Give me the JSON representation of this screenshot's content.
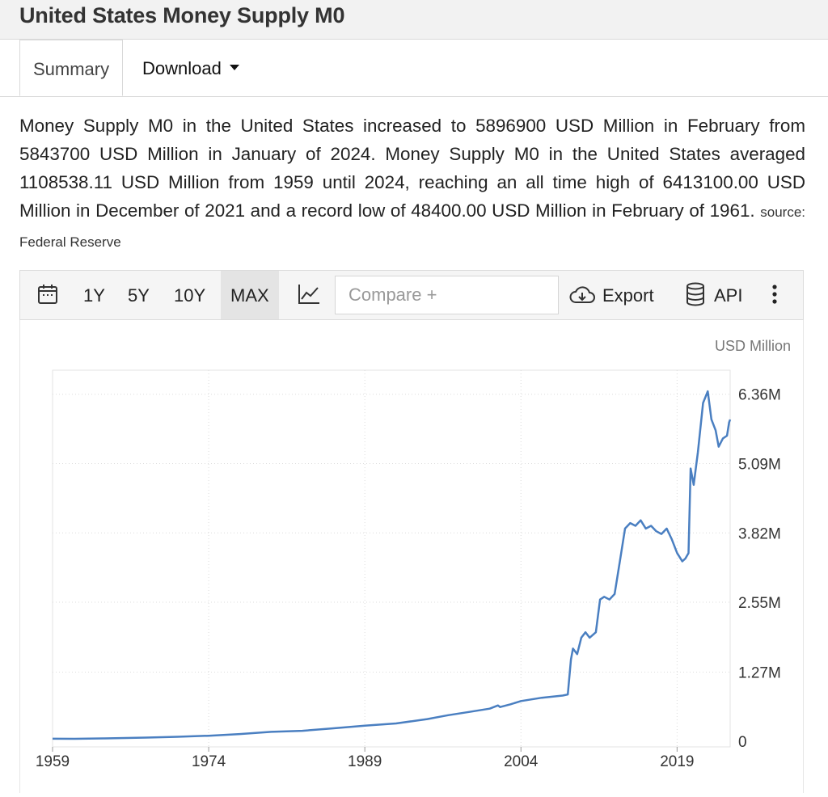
{
  "header": {
    "title": "United States Money Supply M0"
  },
  "tabs": [
    {
      "label": "Summary"
    },
    {
      "label": "Download"
    }
  ],
  "summary": {
    "text": "Money Supply M0 in the United States increased to 5896900 USD Million in February from 5843700 USD Million in January of 2024. Money Supply M0 in the United States averaged 1108538.11 USD Million from 1959 until 2024, reaching an all time high of 6413100.00 USD Million in December of 2021 and a record low of 48400.00 USD Million in February of 1961.",
    "source": "source: Federal Reserve"
  },
  "toolbar": {
    "ranges": [
      "1Y",
      "5Y",
      "10Y",
      "MAX"
    ],
    "selected_range": "MAX",
    "compare_placeholder": "Compare +",
    "export_label": "Export",
    "api_label": "API",
    "icons": [
      "calendar-icon",
      "line-chart-icon",
      "cloud-download-icon",
      "database-icon",
      "more-vertical-icon"
    ]
  },
  "chart_data": {
    "type": "line",
    "title": "United States Money Supply M0",
    "ylabel": "USD Million",
    "unit_label": "USD Million",
    "x_ticks": [
      "1959",
      "1974",
      "1989",
      "2004",
      "2019"
    ],
    "y_ticks": [
      "0",
      "1.27M",
      "2.55M",
      "3.82M",
      "5.09M",
      "6.36M"
    ],
    "y_tick_values": [
      0,
      1270000,
      2550000,
      3820000,
      5090000,
      6360000
    ],
    "xlim": [
      1959,
      2024.1
    ],
    "ylim": [
      -100000,
      6800000
    ],
    "grid": true,
    "line_color": "#4a7fc1",
    "series": [
      {
        "name": "Money Supply M0",
        "points": [
          [
            1959.0,
            50000
          ],
          [
            1961.1,
            48400
          ],
          [
            1964,
            55000
          ],
          [
            1968,
            70000
          ],
          [
            1971,
            85000
          ],
          [
            1974,
            105000
          ],
          [
            1977,
            135000
          ],
          [
            1980,
            175000
          ],
          [
            1983,
            195000
          ],
          [
            1986,
            240000
          ],
          [
            1989,
            290000
          ],
          [
            1992,
            330000
          ],
          [
            1995,
            410000
          ],
          [
            1997,
            480000
          ],
          [
            1999,
            540000
          ],
          [
            2001,
            600000
          ],
          [
            2001.8,
            660000
          ],
          [
            2002,
            630000
          ],
          [
            2003,
            680000
          ],
          [
            2004,
            740000
          ],
          [
            2006,
            800000
          ],
          [
            2008.0,
            840000
          ],
          [
            2008.5,
            860000
          ],
          [
            2008.8,
            1500000
          ],
          [
            2009.0,
            1700000
          ],
          [
            2009.4,
            1600000
          ],
          [
            2009.8,
            1900000
          ],
          [
            2010.2,
            2000000
          ],
          [
            2010.6,
            1900000
          ],
          [
            2011.2,
            2000000
          ],
          [
            2011.6,
            2600000
          ],
          [
            2012.0,
            2650000
          ],
          [
            2012.5,
            2600000
          ],
          [
            2013.0,
            2700000
          ],
          [
            2013.5,
            3300000
          ],
          [
            2014.0,
            3900000
          ],
          [
            2014.5,
            4000000
          ],
          [
            2015.0,
            3950000
          ],
          [
            2015.5,
            4050000
          ],
          [
            2016.0,
            3900000
          ],
          [
            2016.5,
            3950000
          ],
          [
            2017.0,
            3850000
          ],
          [
            2017.5,
            3800000
          ],
          [
            2018.0,
            3900000
          ],
          [
            2018.5,
            3700000
          ],
          [
            2019.0,
            3450000
          ],
          [
            2019.5,
            3300000
          ],
          [
            2019.8,
            3350000
          ],
          [
            2020.1,
            3450000
          ],
          [
            2020.3,
            5000000
          ],
          [
            2020.6,
            4700000
          ],
          [
            2021.0,
            5300000
          ],
          [
            2021.5,
            6200000
          ],
          [
            2021.95,
            6413100
          ],
          [
            2022.3,
            5900000
          ],
          [
            2022.7,
            5700000
          ],
          [
            2023.0,
            5400000
          ],
          [
            2023.4,
            5550000
          ],
          [
            2023.8,
            5600000
          ],
          [
            2024.0,
            5843700
          ],
          [
            2024.1,
            5896900
          ]
        ]
      }
    ]
  }
}
